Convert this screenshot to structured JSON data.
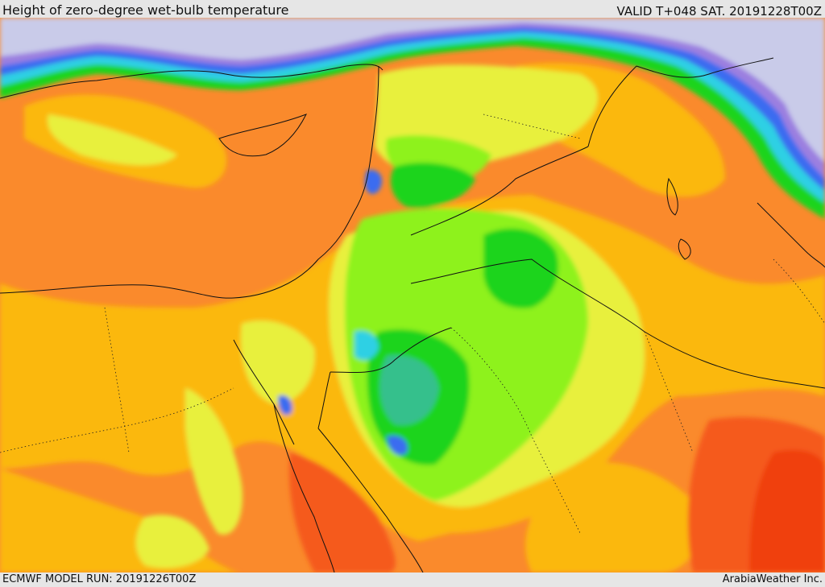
{
  "header": {
    "title": "Height of zero-degree wet-bulb temperature",
    "valid": "VALID T+048 SAT. 20191228T00Z"
  },
  "footer": {
    "model_run": "ECMWF MODEL RUN: 20191226T00Z",
    "credit": "ArabiaWeather Inc."
  },
  "map": {
    "field": "zero-degree wet-bulb height",
    "palette": {
      "sea_blue_grey": "#c9cbe9",
      "violet": "#9b7fe0",
      "blue": "#3a6cf0",
      "cyan": "#2fd0e4",
      "teal": "#35c08c",
      "green": "#1ed41e",
      "light_green": "#8ef21a",
      "yellow_green": "#c8f032",
      "yellow": "#e8f03c",
      "gold": "#fbb808",
      "orange": "#fa8a2c",
      "red_orange": "#f55a1e",
      "red": "#f04010"
    }
  }
}
